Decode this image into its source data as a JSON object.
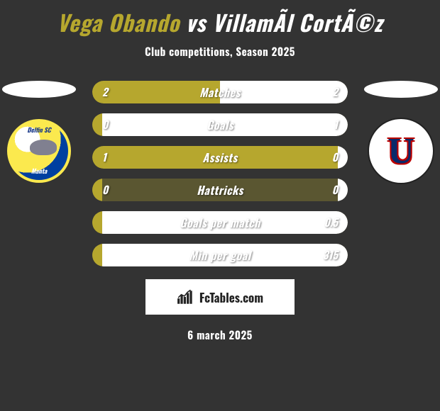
{
  "title": "Vega Obando vs VillamÃ­l CortÃ©z",
  "title_colors": {
    "left": "#b6a72e",
    "vs": "#ffffff",
    "right": "#ffffff"
  },
  "subtitle": "Club competitions, Season 2025",
  "date": "6 march 2025",
  "brand": {
    "icon": "fctables-bars",
    "text": "FcTables.com"
  },
  "colors": {
    "bg": "#333333",
    "left_player": "#b6a72e",
    "right_player": "#ffffff",
    "row_bg": "#5a5631",
    "row_track": "#3a3a3a",
    "text": "#ffffff"
  },
  "logos": {
    "left": {
      "name": "delfin-sc-logo",
      "top_text": "Delfin SC",
      "bottom_text": "Manta"
    },
    "right": {
      "name": "ldu-quito-logo",
      "letter": "U"
    }
  },
  "rows": [
    {
      "label": "Matches",
      "left": "2",
      "right": "2",
      "left_pct": 50,
      "right_pct": 50
    },
    {
      "label": "Goals",
      "left": "0",
      "right": "1",
      "left_pct": 4,
      "right_pct": 96
    },
    {
      "label": "Assists",
      "left": "1",
      "right": "0",
      "left_pct": 96,
      "right_pct": 4
    },
    {
      "label": "Hattricks",
      "left": "0",
      "right": "0",
      "left_pct": 4,
      "right_pct": 4
    },
    {
      "label": "Goals per match",
      "left": "",
      "right": "0.5",
      "left_pct": 4,
      "right_pct": 96
    },
    {
      "label": "Min per goal",
      "left": "",
      "right": "315",
      "left_pct": 4,
      "right_pct": 96
    }
  ],
  "player_names": {
    "left": "Vega Obando",
    "right": "VillamÃ­l CortÃ©z"
  }
}
